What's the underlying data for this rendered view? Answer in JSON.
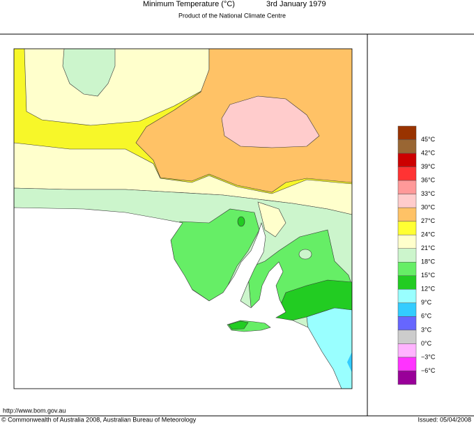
{
  "header": {
    "title": "Minimum Temperature (°C)",
    "date": "3rd January 1979",
    "subtitle": "Product of the National Climate Centre"
  },
  "legend": {
    "colors": [
      "#993300",
      "#996633",
      "#cc0000",
      "#ff3333",
      "#ff9999",
      "#ffcccc",
      "#ffc266",
      "#ffff33",
      "#ffffcc",
      "#ccf5cc",
      "#66ee66",
      "#22cc22",
      "#99ffff",
      "#33ccff",
      "#6666ff",
      "#cccccc",
      "#ffb3ff",
      "#ff33ff",
      "#990099"
    ],
    "labels": [
      "45°C",
      "42°C",
      "39°C",
      "36°C",
      "33°C",
      "30°C",
      "27°C",
      "24°C",
      "21°C",
      "18°C",
      "15°C",
      "12°C",
      "9°C",
      "6°C",
      "3°C",
      "0°C",
      "−3°C",
      "−6°C"
    ]
  },
  "footer": {
    "url": "http://www.bom.gov.au",
    "copyright": "© Commonwealth of Australia 2008, Australian Bureau of Meteorology",
    "issued": "Issued: 05/04/2008"
  }
}
